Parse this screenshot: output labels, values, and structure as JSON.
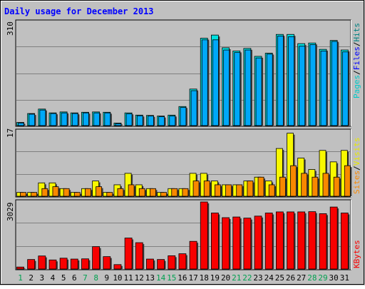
{
  "chart_data": [
    {
      "type": "bar",
      "title": "Daily usage for December 2013",
      "categories": [
        "1",
        "2",
        "3",
        "4",
        "5",
        "6",
        "7",
        "8",
        "9",
        "10",
        "11",
        "12",
        "13",
        "14",
        "15",
        "16",
        "17",
        "18",
        "19",
        "20",
        "21",
        "22",
        "23",
        "24",
        "25",
        "26",
        "27",
        "28",
        "29",
        "30",
        "31"
      ],
      "weekend_days": [
        1,
        7,
        8,
        14,
        15,
        21,
        22,
        28,
        29
      ],
      "ylim": [
        0,
        310
      ],
      "y_tick_label": "310",
      "legend": [
        "Pages",
        "Files",
        "Hits"
      ],
      "series": [
        {
          "name": "Hits",
          "color": "#00e0e0",
          "values": [
            10,
            38,
            52,
            40,
            43,
            40,
            42,
            43,
            42,
            8,
            40,
            33,
            32,
            30,
            33,
            60,
            115,
            275,
            285,
            245,
            235,
            243,
            218,
            228,
            287,
            287,
            258,
            260,
            240,
            268,
            238
          ]
        },
        {
          "name": "Files",
          "color": "#00a8f8",
          "values": [
            8,
            36,
            49,
            38,
            40,
            38,
            40,
            40,
            40,
            6,
            37,
            31,
            30,
            28,
            30,
            57,
            110,
            270,
            270,
            238,
            230,
            238,
            213,
            225,
            282,
            280,
            250,
            255,
            235,
            265,
            232
          ]
        },
        {
          "name": "Pages",
          "color": "#00d8d8",
          "values": [
            0,
            0,
            0,
            0,
            0,
            0,
            0,
            0,
            0,
            0,
            0,
            0,
            0,
            0,
            0,
            0,
            0,
            0,
            0,
            0,
            0,
            0,
            0,
            0,
            0,
            0,
            0,
            0,
            0,
            0,
            0
          ]
        }
      ]
    },
    {
      "type": "bar",
      "categories": [
        "1",
        "2",
        "3",
        "4",
        "5",
        "6",
        "7",
        "8",
        "9",
        "10",
        "11",
        "12",
        "13",
        "14",
        "15",
        "16",
        "17",
        "18",
        "19",
        "20",
        "21",
        "22",
        "23",
        "24",
        "25",
        "26",
        "27",
        "28",
        "29",
        "30",
        "31"
      ],
      "ylim": [
        0,
        17
      ],
      "y_tick_label": "17",
      "legend": [
        "Sites",
        "Visits"
      ],
      "series": [
        {
          "name": "Visits",
          "color": "#f8f800",
          "values": [
            1,
            1,
            3.5,
            3.5,
            2,
            1,
            2,
            4,
            1,
            3,
            6,
            3,
            2,
            1,
            2,
            2,
            6,
            6,
            4,
            3,
            3,
            4,
            5,
            4,
            12.5,
            16.5,
            10,
            7,
            12,
            9,
            12
          ]
        },
        {
          "name": "Sites",
          "color": "#f88800",
          "values": [
            1,
            1,
            2,
            2.5,
            2,
            1,
            2,
            2.5,
            1,
            2,
            3,
            2,
            2,
            1,
            2,
            2,
            4,
            4,
            3,
            3,
            3,
            4,
            5,
            3,
            5,
            8,
            6,
            5,
            6,
            5,
            8
          ]
        }
      ]
    },
    {
      "type": "bar",
      "ylim": [
        0,
        3029
      ],
      "y_tick_label": "3029",
      "legend": [
        "KBytes"
      ],
      "categories": [
        "1",
        "2",
        "3",
        "4",
        "5",
        "6",
        "7",
        "8",
        "9",
        "10",
        "11",
        "12",
        "13",
        "14",
        "15",
        "16",
        "17",
        "18",
        "19",
        "20",
        "21",
        "22",
        "23",
        "24",
        "25",
        "26",
        "27",
        "28",
        "29",
        "30",
        "31"
      ],
      "series": [
        {
          "name": "KBytes",
          "color": "#f80000",
          "values": [
            90,
            430,
            590,
            410,
            490,
            450,
            460,
            1010,
            560,
            200,
            1400,
            1190,
            450,
            430,
            600,
            690,
            1250,
            3029,
            2530,
            2320,
            2350,
            2300,
            2390,
            2530,
            2580,
            2580,
            2580,
            2590,
            2500,
            2800,
            2530
          ]
        }
      ]
    }
  ]
}
